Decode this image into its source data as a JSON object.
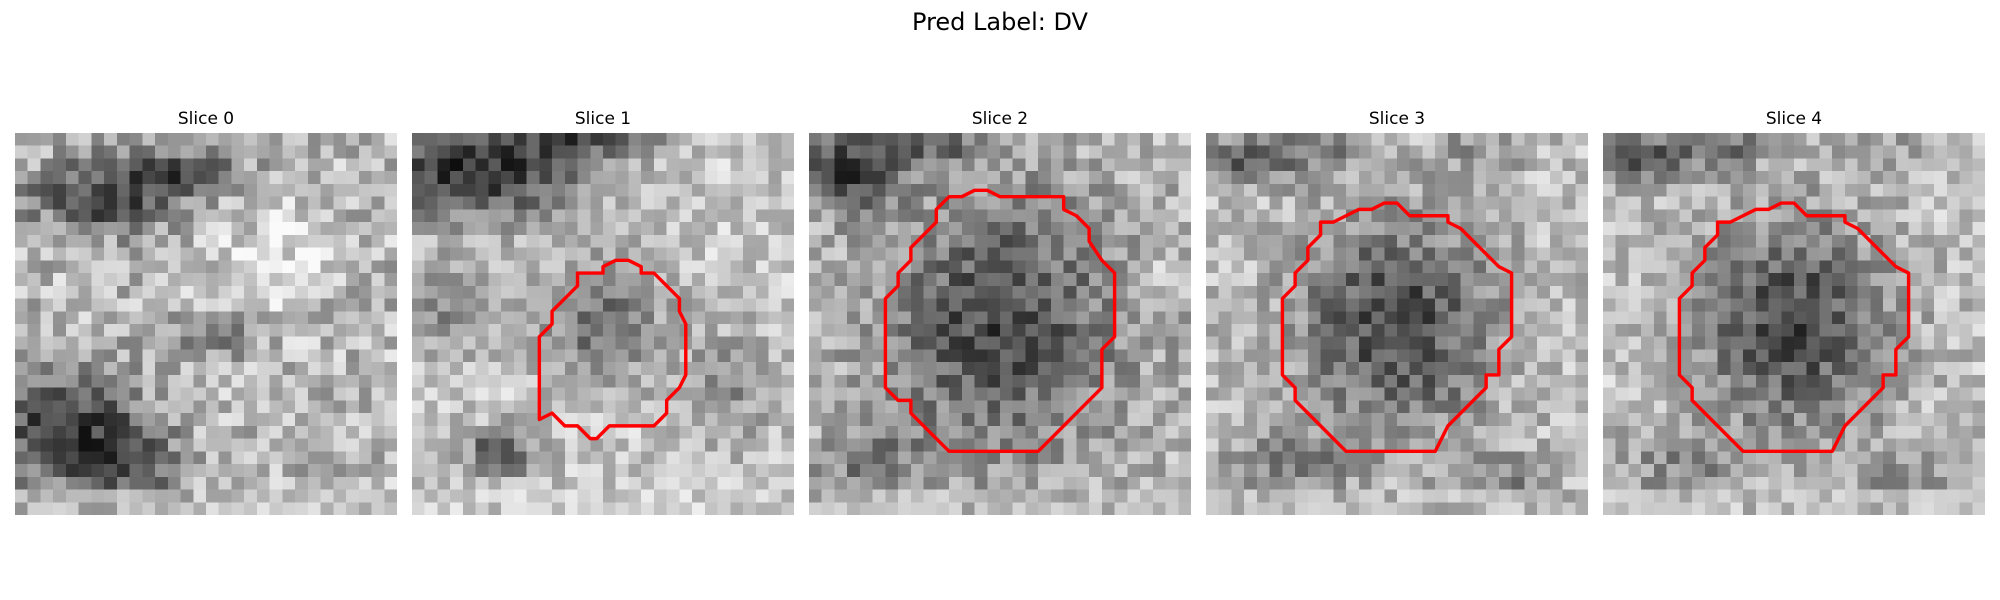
{
  "figure": {
    "title": "Pred Label: DV"
  },
  "panels": [
    {
      "title": "Slice 0",
      "has_contour": false,
      "contour_color": "#ff0000",
      "seed": 11
    },
    {
      "title": "Slice 1",
      "has_contour": true,
      "contour_color": "#ff0000",
      "seed": 23
    },
    {
      "title": "Slice 2",
      "has_contour": true,
      "contour_color": "#ff0000",
      "seed": 37
    },
    {
      "title": "Slice 3",
      "has_contour": true,
      "contour_color": "#ff0000",
      "seed": 41
    },
    {
      "title": "Slice 4",
      "has_contour": true,
      "contour_color": "#ff0000",
      "seed": 53
    }
  ],
  "colormap": "gray"
}
